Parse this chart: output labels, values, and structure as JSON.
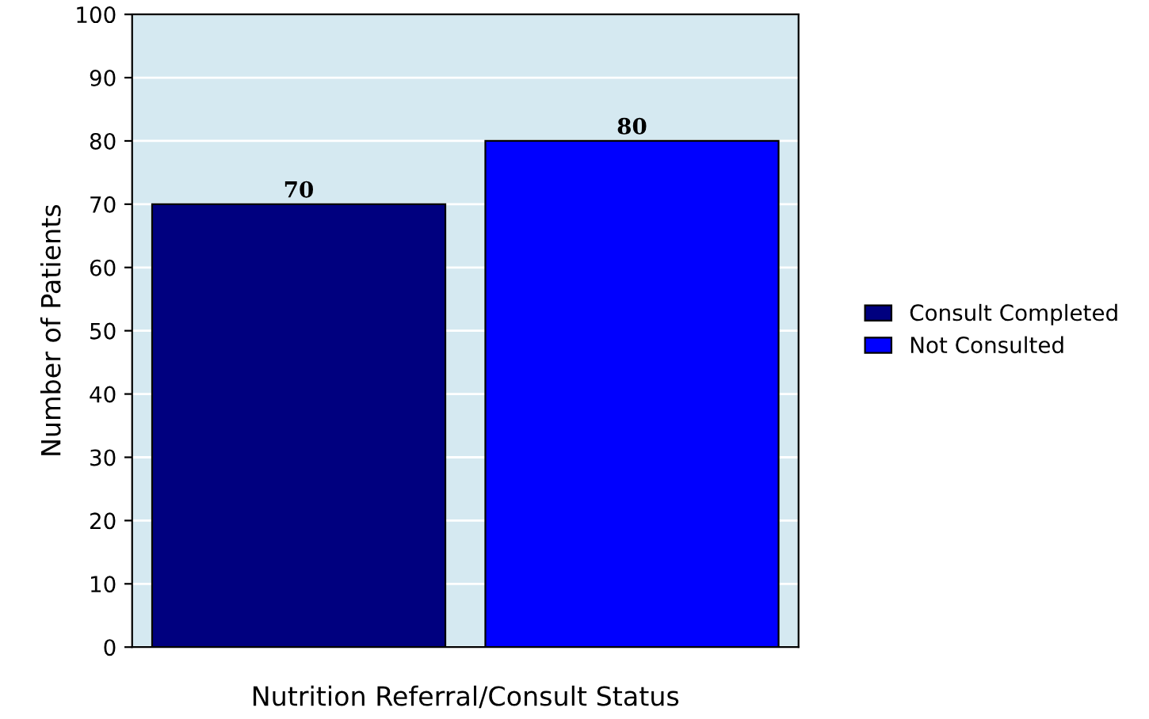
{
  "chart_data": {
    "type": "bar",
    "xlabel": "Nutrition Referral/Consult Status",
    "ylabel": "Number of Patients",
    "categories": [
      null,
      null
    ],
    "series": [
      {
        "name": "Consult Completed",
        "color": "#00007f",
        "values": [
          70,
          null
        ]
      },
      {
        "name": "Not Consulted",
        "color": "#0000ff",
        "values": [
          null,
          80
        ]
      }
    ],
    "ylim": [
      0,
      100
    ],
    "yticks": [
      0,
      10,
      20,
      30,
      40,
      50,
      60,
      70,
      80,
      90,
      100
    ],
    "grid": "y",
    "legend": "right",
    "data_labels": true
  }
}
